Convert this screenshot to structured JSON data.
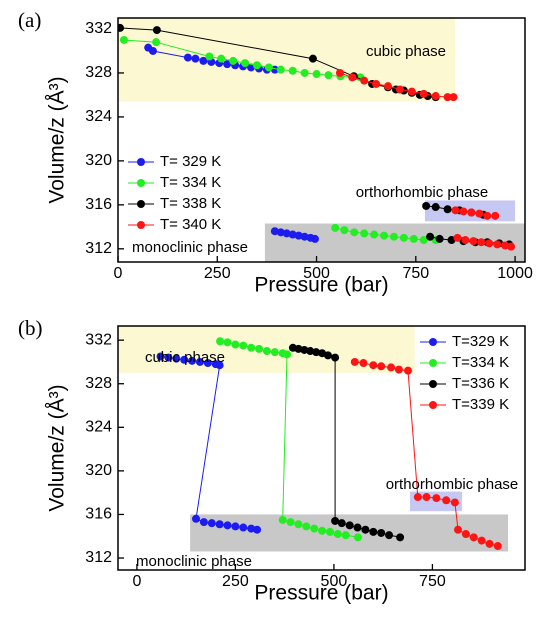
{
  "chart_data": [
    {
      "type": "scatter",
      "panel_label": "(a)",
      "xlabel": "Pressure (bar)",
      "ylabel": "Volume/z (Å³)",
      "xlim": [
        0,
        1025
      ],
      "ylim": [
        310.8,
        333
      ],
      "xticks": [
        0,
        250,
        500,
        750,
        1000
      ],
      "yticks": [
        312,
        316,
        320,
        324,
        328,
        332
      ],
      "legend": "center left",
      "regions": [
        {
          "label": "cubic phase",
          "color": "#fbf8d2",
          "x": [
            0,
            849
          ],
          "y": [
            325.4,
            333
          ]
        },
        {
          "label": "orthorhombic phase",
          "color": "#c5c8f2",
          "x": [
            773,
            1000
          ],
          "y": [
            314.5,
            316.4
          ]
        },
        {
          "label": "monoclinic phase",
          "color": "#c8c8c8",
          "x": [
            370,
            1025
          ],
          "y": [
            310.8,
            314.3
          ]
        }
      ],
      "series": [
        {
          "name": "T= 329 K",
          "color": "#1c1cf0",
          "x": [
            76,
            88,
            176,
            195,
            215,
            235,
            255,
            275,
            295,
            315,
            335,
            355,
            375,
            395,
            null,
            395,
            410,
            425,
            440,
            455,
            470,
            485,
            496
          ],
          "values": [
            330.3,
            330.0,
            329.4,
            329.3,
            329.1,
            329.0,
            328.9,
            328.8,
            328.7,
            328.6,
            328.5,
            328.4,
            328.3,
            328.3,
            null,
            313.6,
            313.5,
            313.4,
            313.3,
            313.2,
            313.1,
            313.0,
            312.9
          ]
        },
        {
          "name": "T= 334 K",
          "color": "#22ee22",
          "x": [
            15,
            96,
            230,
            260,
            290,
            320,
            350,
            380,
            410,
            440,
            470,
            500,
            530,
            560,
            590,
            610,
            null,
            547,
            570,
            595,
            620,
            645,
            670,
            695,
            720,
            745,
            770,
            800
          ],
          "values": [
            331.0,
            330.8,
            329.5,
            329.3,
            329.1,
            328.9,
            328.7,
            328.5,
            328.3,
            328.2,
            328.0,
            327.9,
            327.8,
            327.7,
            327.6,
            327.6,
            null,
            313.9,
            313.7,
            313.5,
            313.4,
            313.3,
            313.2,
            313.1,
            313.0,
            312.9,
            312.8,
            312.8
          ]
        },
        {
          "name": "T= 338 K",
          "color": "#000000",
          "x": [
            5,
            98,
            491,
            594,
            640,
            680,
            700,
            720,
            740,
            760,
            780,
            800,
            null,
            776,
            800,
            830,
            860,
            890,
            920,
            null,
            786,
            810,
            840,
            870,
            900,
            930,
            960,
            985
          ],
          "values": [
            332.1,
            331.9,
            329.3,
            327.7,
            327.0,
            326.7,
            326.5,
            326.4,
            326.2,
            326.0,
            325.9,
            325.8,
            null,
            315.9,
            315.8,
            315.6,
            315.5,
            315.3,
            315.1,
            null,
            313.1,
            312.9,
            312.8,
            312.7,
            312.6,
            312.6,
            312.5,
            312.4
          ]
        },
        {
          "name": "T= 340 K",
          "color": "#ff1414",
          "x": [
            559,
            590,
            620,
            650,
            680,
            710,
            740,
            770,
            800,
            830,
            845,
            null,
            850,
            870,
            890,
            910,
            930,
            950,
            null,
            855,
            875,
            895,
            915,
            935,
            955,
            975,
            990
          ],
          "values": [
            328.0,
            327.6,
            327.3,
            327.0,
            326.8,
            326.5,
            326.3,
            326.1,
            325.9,
            325.8,
            325.8,
            null,
            315.5,
            315.4,
            315.3,
            315.2,
            315.0,
            315.0,
            null,
            313.0,
            312.8,
            312.7,
            312.6,
            312.5,
            312.4,
            312.3,
            312.2
          ]
        }
      ]
    },
    {
      "type": "scatter",
      "panel_label": "(b)",
      "xlabel": "Pressure (bar)",
      "ylabel": "Volume/z (Å³)",
      "xlim": [
        -48,
        985
      ],
      "ylim": [
        310.9,
        333.3
      ],
      "xticks": [
        0,
        250,
        500,
        750
      ],
      "yticks": [
        312,
        316,
        320,
        324,
        328,
        332
      ],
      "legend": "upper right",
      "regions": [
        {
          "label": "cubic phase",
          "color": "#fbf8d2",
          "x": [
            -48,
            705
          ],
          "y": [
            329.0,
            333.3
          ]
        },
        {
          "label": "orthorhombic phase",
          "color": "#c5c8f2",
          "x": [
            693,
            825
          ],
          "y": [
            316.3,
            318.1
          ]
        },
        {
          "label": "monoclinic phase",
          "color": "#c8c8c8",
          "x": [
            135,
            942
          ],
          "y": [
            312.6,
            316.0
          ]
        }
      ],
      "series": [
        {
          "name": "T=329 K",
          "color": "#1c1cf0",
          "x": [
            60,
            80,
            100,
            120,
            140,
            160,
            180,
            200,
            210,
            150,
            170,
            190,
            210,
            230,
            250,
            270,
            290,
            305
          ],
          "values": [
            330.5,
            330.4,
            330.3,
            330.2,
            330.1,
            330.0,
            329.9,
            329.8,
            329.7,
            315.6,
            315.3,
            315.2,
            315.1,
            315.0,
            314.9,
            314.8,
            314.7,
            314.6
          ]
        },
        {
          "name": "T=334 K",
          "color": "#22ee22",
          "x": [
            211,
            230,
            250,
            270,
            290,
            310,
            330,
            350,
            370,
            381,
            370,
            390,
            410,
            430,
            450,
            470,
            490,
            510,
            530,
            561
          ],
          "values": [
            331.9,
            331.8,
            331.6,
            331.5,
            331.3,
            331.2,
            331.0,
            330.9,
            330.8,
            330.7,
            315.5,
            315.3,
            315.1,
            314.9,
            314.7,
            314.5,
            314.4,
            314.2,
            314.1,
            313.9
          ]
        },
        {
          "name": "T=336 K",
          "color": "#000000",
          "x": [
            396,
            410,
            425,
            440,
            455,
            470,
            485,
            503,
            503,
            520,
            540,
            560,
            580,
            600,
            620,
            640,
            668
          ],
          "values": [
            331.3,
            331.2,
            331.1,
            331.0,
            330.9,
            330.8,
            330.6,
            330.4,
            315.4,
            315.2,
            315.0,
            314.8,
            314.6,
            314.4,
            314.3,
            314.1,
            313.9
          ]
        },
        {
          "name": "T=339 K",
          "color": "#ff1414",
          "x": [
            553,
            575,
            600,
            620,
            645,
            665,
            688,
            713,
            735,
            760,
            785,
            807,
            815,
            835,
            855,
            875,
            895,
            916
          ],
          "values": [
            330.0,
            329.9,
            329.7,
            329.6,
            329.5,
            329.3,
            329.2,
            317.6,
            317.6,
            317.5,
            317.3,
            317.1,
            314.6,
            314.2,
            313.9,
            313.6,
            313.3,
            313.1
          ]
        }
      ]
    }
  ]
}
